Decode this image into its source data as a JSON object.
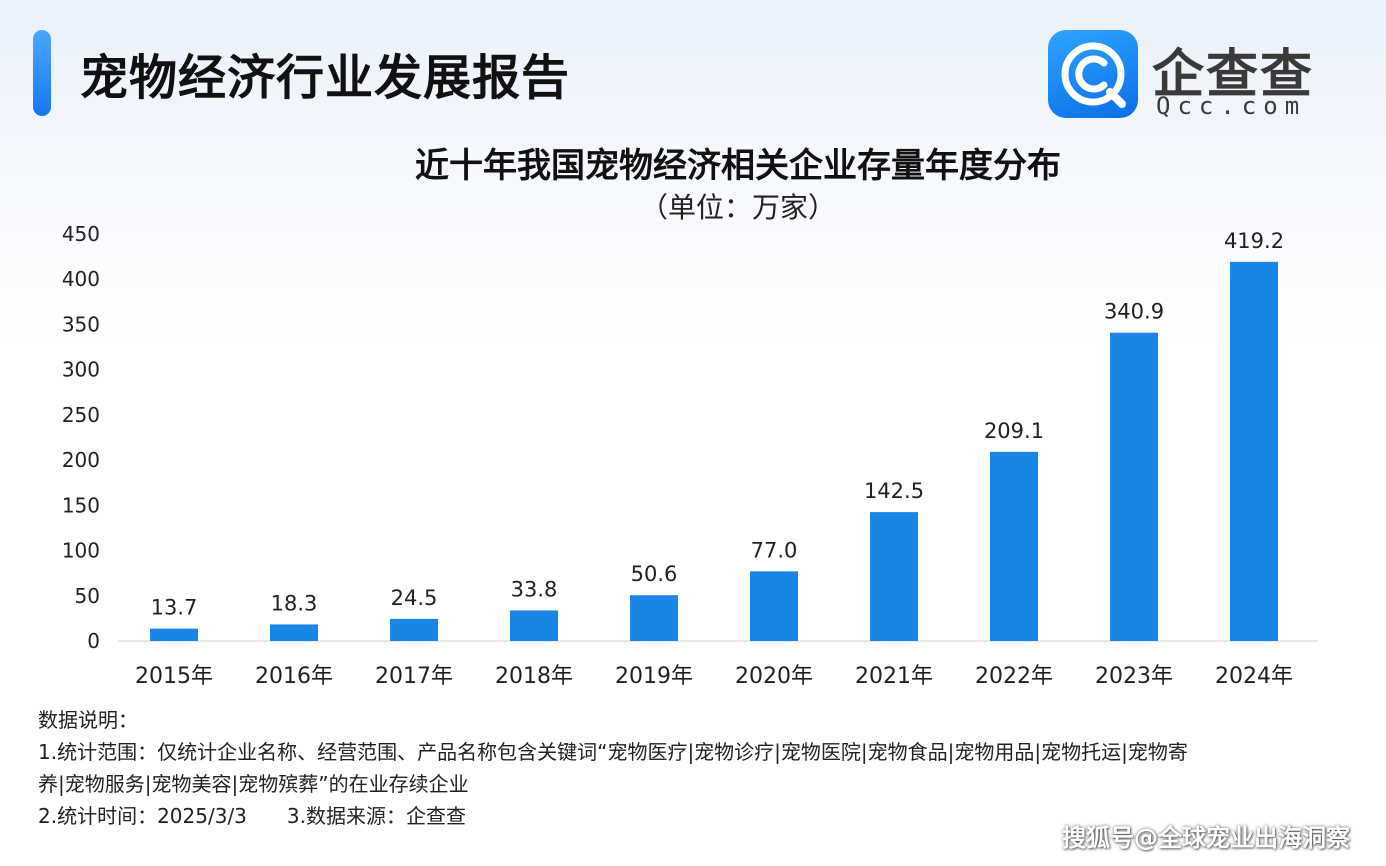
{
  "header": {
    "report_title": "宠物经济行业发展报告",
    "logo_name": "企查查",
    "logo_domain": "Qcc.com"
  },
  "colors": {
    "accent": "#1677f2",
    "bar": "#1a86e6",
    "logo": "#0a6fe8"
  },
  "chart_data": {
    "type": "bar",
    "title": "近十年我国宠物经济相关企业存量年度分布",
    "subtitle": "（单位：万家）",
    "categories": [
      "2015年",
      "2016年",
      "2017年",
      "2018年",
      "2019年",
      "2020年",
      "2021年",
      "2022年",
      "2023年",
      "2024年"
    ],
    "values": [
      13.7,
      18.3,
      24.5,
      33.8,
      50.6,
      77.0,
      142.5,
      209.1,
      340.9,
      419.2
    ],
    "value_labels": [
      "13.7",
      "18.3",
      "24.5",
      "33.8",
      "50.6",
      "77.0",
      "142.5",
      "209.1",
      "340.9",
      "419.2"
    ],
    "ylim": [
      0,
      450
    ],
    "yticks": [
      "0",
      "50",
      "100",
      "150",
      "200",
      "250",
      "300",
      "350",
      "400",
      "450"
    ],
    "grid": false,
    "legend": "none"
  },
  "notes": {
    "heading": "数据说明：",
    "line1": "1.统计范围：仅统计企业名称、经营范围、产品名称包含关键词“宠物医疗|宠物诊疗|宠物医院|宠物食品|宠物用品|宠物托运|宠物寄",
    "line1_cont": "养|宠物服务|宠物美容|宠物殡葬”的在业存续企业",
    "line2_time": "2.统计时间：2025/3/3",
    "line2_source": "3.数据来源：企查查"
  },
  "watermark": "搜狐号@全球宠业出海洞察"
}
